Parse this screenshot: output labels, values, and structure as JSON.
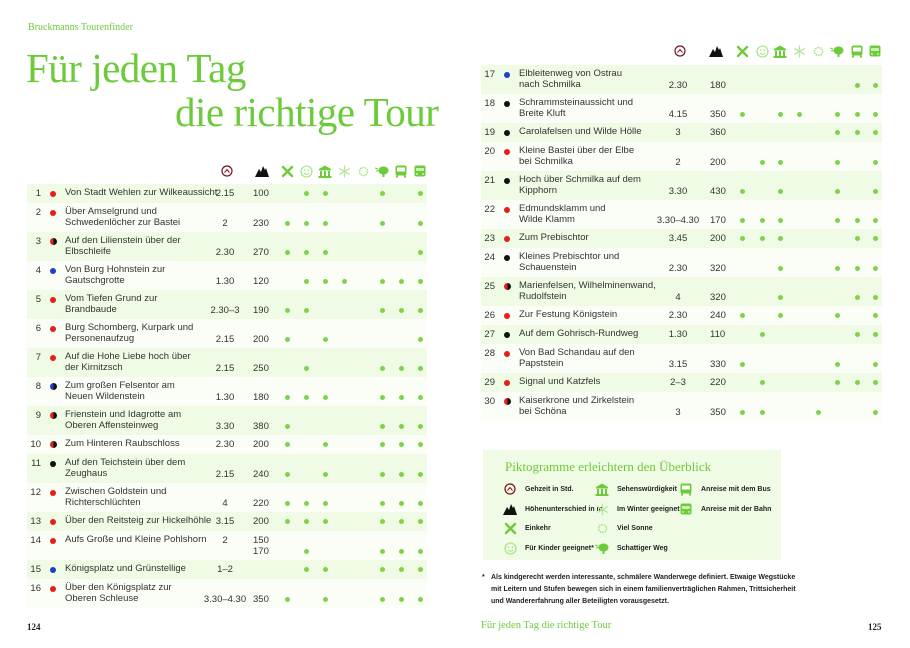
{
  "book": {
    "series": "Bruckmanns Tourenfinder"
  },
  "title": {
    "line1": "Für jeden Tag",
    "line2": "die richtige Tour"
  },
  "colors": {
    "accent": "#6ccb3a",
    "row_band": "#effbe4",
    "row_alt": "#fafef6",
    "marker": "#7fd34a",
    "red": "#e3201b",
    "black": "#111111",
    "blue": "#1d3fcf"
  },
  "columns": [
    "einkehr",
    "kinder",
    "sehenswuerdigkeit",
    "winter",
    "sonne",
    "schatten",
    "bus",
    "bahn"
  ],
  "header_icons": [
    "clock-icon",
    "mountain-icon",
    "cutlery-icon",
    "smiley-icon",
    "temple-icon",
    "snowflake-icon",
    "sun-icon",
    "tree-icon",
    "bus-icon",
    "train-icon"
  ],
  "tours_left": [
    {
      "n": "1",
      "dot": [
        "red"
      ],
      "name": [
        "Von Stadt Wehlen zur Wilkeaussicht"
      ],
      "time": "2.15",
      "height": "100",
      "marks": [
        0,
        1,
        1,
        0,
        0,
        1,
        0,
        1
      ]
    },
    {
      "n": "2",
      "dot": [
        "red"
      ],
      "name": [
        "Über Amselgrund und",
        "Schwedenlöcher zur Bastei"
      ],
      "time": "2",
      "height": "230",
      "marks": [
        1,
        1,
        1,
        0,
        0,
        1,
        0,
        1
      ]
    },
    {
      "n": "3",
      "dot": [
        "red",
        "black"
      ],
      "name": [
        "Auf den Lilienstein über der",
        "Elbschleife"
      ],
      "time": "2.30",
      "height": "270",
      "marks": [
        1,
        1,
        1,
        0,
        0,
        0,
        0,
        1
      ]
    },
    {
      "n": "4",
      "dot": [
        "blue"
      ],
      "name": [
        "Von Burg Hohnstein zur",
        "Gautschgrotte"
      ],
      "time": "1.30",
      "height": "120",
      "marks": [
        0,
        1,
        1,
        1,
        0,
        1,
        1,
        1
      ]
    },
    {
      "n": "5",
      "dot": [
        "red"
      ],
      "name": [
        "Vom Tiefen Grund zur",
        "Brandbaude"
      ],
      "time": "2.30–3",
      "height": "190",
      "marks": [
        1,
        1,
        0,
        0,
        0,
        1,
        1,
        1
      ]
    },
    {
      "n": "6",
      "dot": [
        "red"
      ],
      "name": [
        "Burg Schomberg, Kurpark und",
        "Personenaufzug"
      ],
      "time": "2.15",
      "height": "200",
      "marks": [
        1,
        0,
        1,
        0,
        0,
        0,
        0,
        1
      ]
    },
    {
      "n": "7",
      "dot": [
        "red"
      ],
      "name": [
        "Auf die Hohe Liebe hoch über",
        "der Kirnitzsch"
      ],
      "time": "2.15",
      "height": "250",
      "marks": [
        0,
        1,
        0,
        0,
        0,
        1,
        1,
        1
      ]
    },
    {
      "n": "8",
      "dot": [
        "blue",
        "black"
      ],
      "name": [
        "Zum großen Felsentor am",
        "Neuen Wildenstein"
      ],
      "time": "1.30",
      "height": "180",
      "marks": [
        1,
        1,
        1,
        0,
        0,
        1,
        1,
        1
      ]
    },
    {
      "n": "9",
      "dot": [
        "red",
        "black"
      ],
      "name": [
        "Frienstein und Idagrotte am",
        "Oberen Affensteinweg"
      ],
      "time": "3.30",
      "height": "380",
      "marks": [
        1,
        0,
        0,
        0,
        0,
        1,
        1,
        1
      ]
    },
    {
      "n": "10",
      "dot": [
        "red",
        "black"
      ],
      "name": [
        "Zum Hinteren Raubschloss"
      ],
      "time": "2.30",
      "height": "200",
      "marks": [
        1,
        0,
        1,
        0,
        0,
        1,
        1,
        1
      ]
    },
    {
      "n": "11",
      "dot": [
        "black"
      ],
      "name": [
        "Auf den Teichstein über dem",
        "Zeughaus"
      ],
      "time": "2.15",
      "height": "240",
      "marks": [
        1,
        0,
        1,
        0,
        0,
        1,
        1,
        1
      ]
    },
    {
      "n": "12",
      "dot": [
        "red"
      ],
      "name": [
        "Zwischen Goldstein und",
        "Richterschlüchten"
      ],
      "time": "4",
      "height": "220",
      "marks": [
        1,
        1,
        1,
        0,
        0,
        1,
        1,
        1
      ]
    },
    {
      "n": "13",
      "dot": [
        "red"
      ],
      "name": [
        "Über den Reitsteig zur Hickelhöhle"
      ],
      "time": "3.15",
      "height": "200",
      "marks": [
        1,
        1,
        1,
        0,
        0,
        1,
        1,
        1
      ]
    },
    {
      "n": "14",
      "dot": [
        "red"
      ],
      "name": [
        "Aufs Große und Kleine Pohlshorn"
      ],
      "time": "2",
      "height": "150\n170",
      "marks": [
        0,
        1,
        0,
        0,
        0,
        1,
        1,
        1
      ],
      "time_top": true
    },
    {
      "n": "15",
      "dot": [
        "blue"
      ],
      "name": [
        "Königsplatz und Grünstellige"
      ],
      "time": "1–2",
      "height": "",
      "marks": [
        0,
        1,
        1,
        0,
        0,
        1,
        1,
        1
      ]
    },
    {
      "n": "16",
      "dot": [
        "red"
      ],
      "name": [
        "Über den Königsplatz zur",
        "Oberen Schleuse"
      ],
      "time": "3.30–4.30",
      "height": "350",
      "marks": [
        1,
        0,
        1,
        0,
        0,
        1,
        1,
        1
      ]
    }
  ],
  "tours_right": [
    {
      "n": "17",
      "dot": [
        "blue"
      ],
      "name": [
        "Elbleitenweg von Ostrau",
        "nach Schmilka"
      ],
      "time": "2.30",
      "height": "180",
      "marks": [
        0,
        0,
        0,
        0,
        0,
        0,
        1,
        1
      ]
    },
    {
      "n": "18",
      "dot": [
        "black"
      ],
      "name": [
        "Schrammsteinaussicht und",
        "Breite Kluft"
      ],
      "time": "4.15",
      "height": "350",
      "marks": [
        1,
        0,
        1,
        1,
        0,
        1,
        1,
        1
      ]
    },
    {
      "n": "19",
      "dot": [
        "black"
      ],
      "name": [
        "Carolafelsen und Wilde Hölle"
      ],
      "time": "3",
      "height": "360",
      "marks": [
        0,
        0,
        0,
        0,
        0,
        1,
        1,
        1
      ]
    },
    {
      "n": "20",
      "dot": [
        "red"
      ],
      "name": [
        "Kleine Bastei über der Elbe",
        "bei Schmilka"
      ],
      "time": "2",
      "height": "200",
      "marks": [
        0,
        1,
        1,
        0,
        0,
        1,
        0,
        1
      ]
    },
    {
      "n": "21",
      "dot": [
        "black"
      ],
      "name": [
        "Hoch über Schmilka auf dem",
        "Kipphorn"
      ],
      "time": "3.30",
      "height": "430",
      "marks": [
        1,
        0,
        1,
        0,
        0,
        1,
        0,
        1
      ]
    },
    {
      "n": "22",
      "dot": [
        "red"
      ],
      "name": [
        "Edmundsklamm und",
        "Wilde Klamm"
      ],
      "time": "3.30–4.30",
      "height": "170",
      "marks": [
        1,
        1,
        1,
        0,
        0,
        1,
        1,
        1
      ]
    },
    {
      "n": "23",
      "dot": [
        "red"
      ],
      "name": [
        "Zum Prebischtor"
      ],
      "time": "3.45",
      "height": "200",
      "marks": [
        1,
        1,
        1,
        0,
        0,
        0,
        1,
        1
      ]
    },
    {
      "n": "24",
      "dot": [
        "black"
      ],
      "name": [
        "Kleines Prebischtor und",
        "Schauenstein"
      ],
      "time": "2.30",
      "height": "320",
      "marks": [
        0,
        0,
        1,
        0,
        0,
        1,
        1,
        1
      ]
    },
    {
      "n": "25",
      "dot": [
        "red",
        "black"
      ],
      "name": [
        "Marienfelsen, Wilhelminenwand,",
        "Rudolfstein"
      ],
      "time": "4",
      "height": "320",
      "marks": [
        0,
        0,
        1,
        0,
        0,
        0,
        1,
        1
      ]
    },
    {
      "n": "26",
      "dot": [
        "red"
      ],
      "name": [
        "Zur Festung Königstein"
      ],
      "time": "2.30",
      "height": "240",
      "marks": [
        1,
        0,
        1,
        0,
        0,
        1,
        0,
        1
      ]
    },
    {
      "n": "27",
      "dot": [
        "black"
      ],
      "name": [
        "Auf dem Gohrisch-Rundweg"
      ],
      "time": "1.30",
      "height": "110",
      "marks": [
        0,
        1,
        0,
        0,
        0,
        0,
        1,
        1
      ]
    },
    {
      "n": "28",
      "dot": [
        "red"
      ],
      "name": [
        "Von Bad Schandau auf den",
        "Papststein"
      ],
      "time": "3.15",
      "height": "330",
      "marks": [
        1,
        0,
        0,
        0,
        0,
        1,
        0,
        1
      ]
    },
    {
      "n": "29",
      "dot": [
        "red"
      ],
      "name": [
        "Signal und Katzfels"
      ],
      "time": "2–3",
      "height": "220",
      "marks": [
        0,
        1,
        0,
        0,
        0,
        1,
        1,
        1
      ]
    },
    {
      "n": "30",
      "dot": [
        "red",
        "black"
      ],
      "name": [
        "Kaiserkrone und Zirkelstein",
        "bei Schöna"
      ],
      "time": "3",
      "height": "350",
      "marks": [
        1,
        1,
        0,
        0,
        1,
        0,
        0,
        1
      ]
    }
  ],
  "legend": {
    "title": "Piktogramme erleichtern den Überblick",
    "items": [
      {
        "icon": "clock-icon",
        "label": "Gehzeit in Std."
      },
      {
        "icon": "mountain-icon",
        "label": "Höhenunterschied in m"
      },
      {
        "icon": "cutlery-icon",
        "label": "Einkehr"
      },
      {
        "icon": "smiley-icon",
        "label": "Für Kinder geeignet*"
      },
      {
        "icon": "temple-icon",
        "label": "Sehenswürdigkeit"
      },
      {
        "icon": "snowflake-icon",
        "label": "Im Winter geeignet"
      },
      {
        "icon": "sun-icon",
        "label": "Viel Sonne"
      },
      {
        "icon": "tree-icon",
        "label": "Schattiger Weg"
      },
      {
        "icon": "bus-icon",
        "label": "Anreise mit dem Bus"
      },
      {
        "icon": "train-icon",
        "label": "Anreise mit der Bahn"
      }
    ]
  },
  "footnote": {
    "star": "*",
    "text": "Als kindgerecht werden interessante, schmälere Wanderwege definiert. Etwaige Wegstücke mit Leitern und Stufen bewegen sich in einem familienverträglichen Rahmen, Trittsicherheit und Wandererfahrung aller Beteiligten vorausgesetzt."
  },
  "footer": {
    "page_left": "124",
    "page_right": "125",
    "running_title": "Für jeden Tag die richtige Tour"
  }
}
